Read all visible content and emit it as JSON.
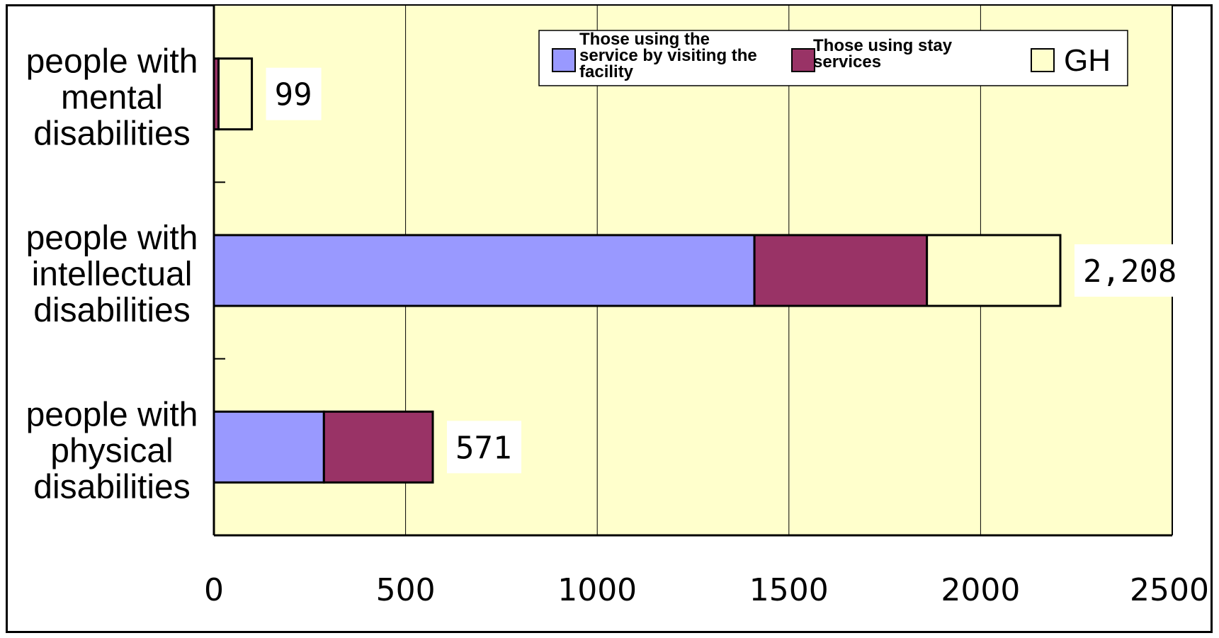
{
  "chart_data": {
    "type": "bar",
    "orientation": "horizontal",
    "stacked": true,
    "categories": [
      [
        "people with",
        "mental",
        "disabilities"
      ],
      [
        "people with",
        "intellectual",
        "disabilities"
      ],
      [
        "people with",
        "physical",
        "disabilities"
      ]
    ],
    "series": [
      {
        "name": "Those using the service by visiting the facility",
        "values": [
          0,
          1410,
          287
        ],
        "color": "#9999ff"
      },
      {
        "name": "Those using stay services",
        "values": [
          12,
          450,
          284
        ],
        "color": "#993366"
      },
      {
        "name": "GH",
        "values": [
          87,
          348,
          0
        ],
        "color": "#ffffcc"
      }
    ],
    "totals_labels": [
      "99",
      "2,208",
      "571"
    ],
    "xlim": [
      0,
      2500
    ],
    "xticks": [
      "0",
      "500",
      "1000",
      "1500",
      "2000",
      "2500"
    ],
    "grid": true,
    "plot_background": "#ffffcc",
    "legend_position": "top-right",
    "legend_lines": [
      [
        "Those using the",
        "service by visiting the",
        "facility"
      ],
      [
        "Those using stay",
        "services"
      ],
      [
        "GH"
      ]
    ]
  }
}
